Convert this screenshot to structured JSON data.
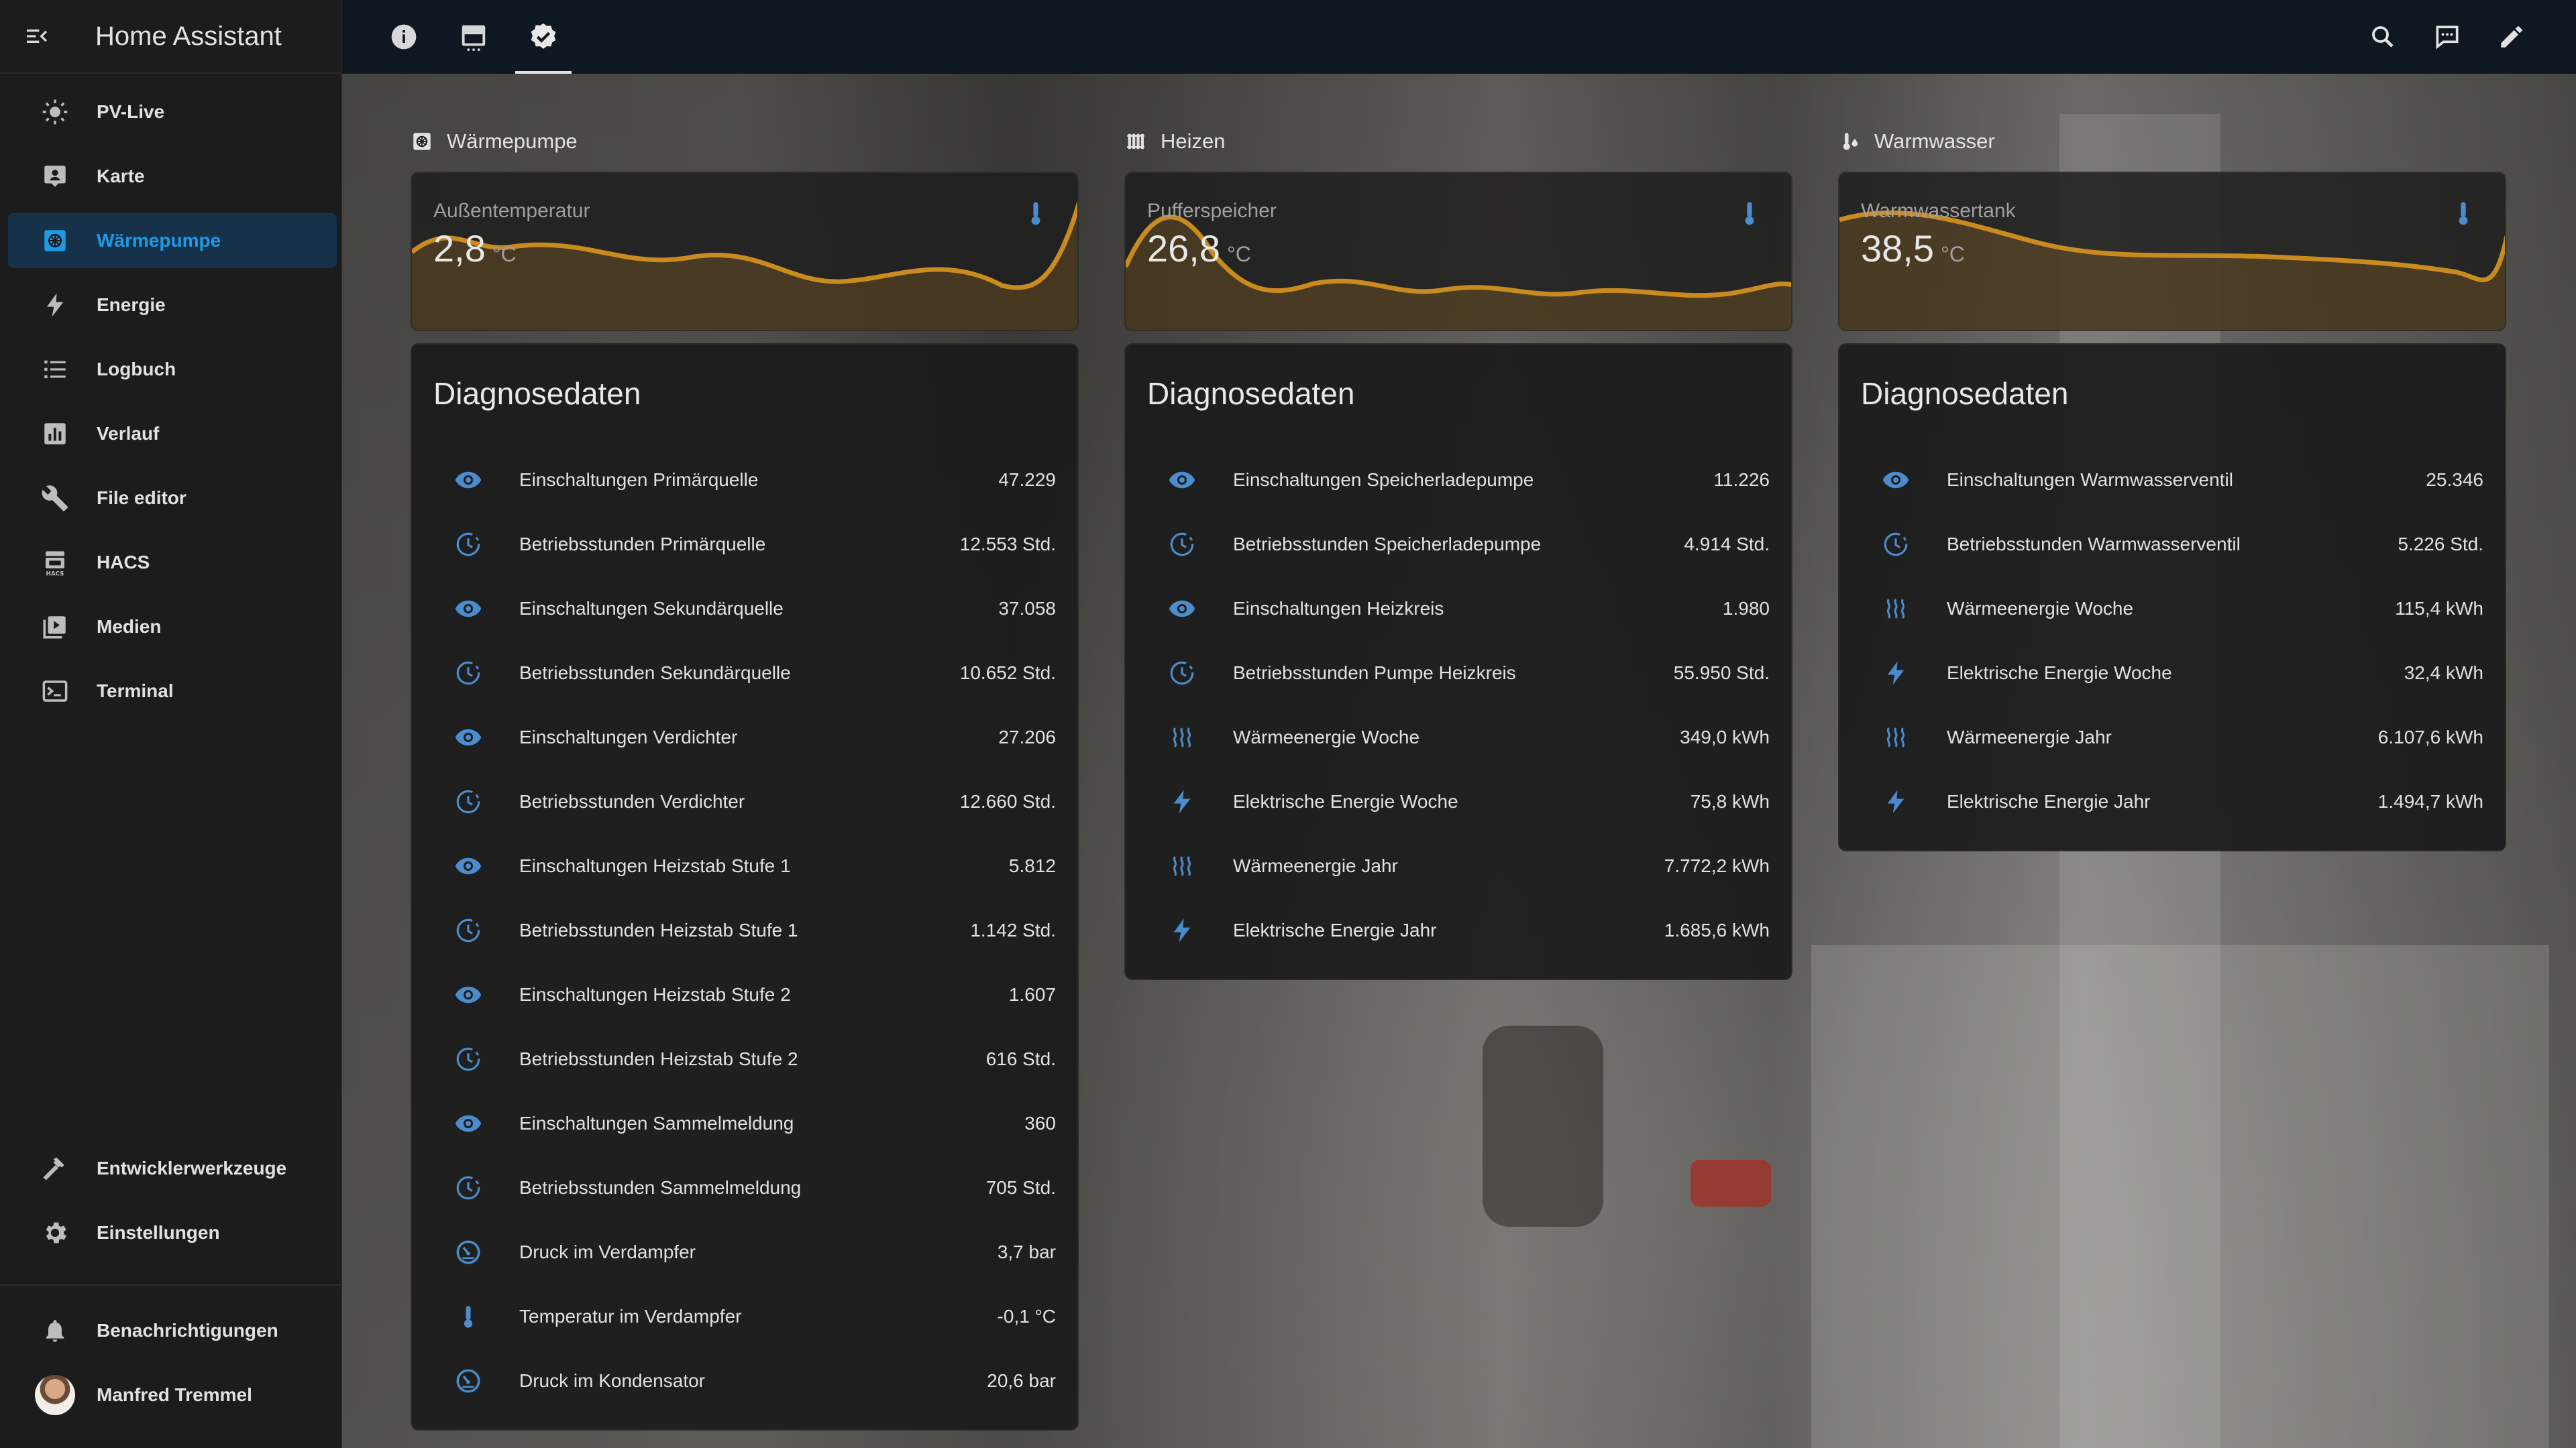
{
  "app": {
    "title": "Home Assistant"
  },
  "sidebar": {
    "items": [
      {
        "label": "PV-Live",
        "icon": "sun-icon"
      },
      {
        "label": "Karte",
        "icon": "map-person-icon"
      },
      {
        "label": "Wärmepumpe",
        "icon": "heat-pump-icon",
        "active": true
      },
      {
        "label": "Energie",
        "icon": "lightning-icon"
      },
      {
        "label": "Logbuch",
        "icon": "list-icon"
      },
      {
        "label": "Verlauf",
        "icon": "chart-icon"
      },
      {
        "label": "File editor",
        "icon": "wrench-icon"
      },
      {
        "label": "HACS",
        "icon": "hacs-icon"
      },
      {
        "label": "Medien",
        "icon": "media-icon"
      },
      {
        "label": "Terminal",
        "icon": "terminal-icon"
      }
    ],
    "bottom": [
      {
        "label": "Entwicklerwerkzeuge",
        "icon": "hammer-icon"
      },
      {
        "label": "Einstellungen",
        "icon": "gear-icon"
      }
    ],
    "notifications": "Benachrichtigungen",
    "user": "Manfred Tremmel"
  },
  "topbar": {
    "tabs": [
      "info-icon",
      "calendar-icon",
      "check-badge-icon"
    ],
    "actions": [
      "search-icon",
      "assist-icon",
      "edit-icon"
    ]
  },
  "colors": {
    "accent": "#1e9be6",
    "graph": "#c98a1f",
    "icon": "#4a8ccd"
  },
  "columns": [
    {
      "title": "Wärmepumpe",
      "icon": "heat-pump-icon",
      "sensor": {
        "name": "Außentemperatur",
        "value": "2,8",
        "unit": "°C"
      },
      "diag_title": "Diagnosedaten",
      "rows": [
        {
          "icon": "eye-icon",
          "label": "Einschaltungen Primärquelle",
          "value": "47.229"
        },
        {
          "icon": "clock-icon",
          "label": "Betriebsstunden Primärquelle",
          "value": "12.553 Std."
        },
        {
          "icon": "eye-icon",
          "label": "Einschaltungen Sekundärquelle",
          "value": "37.058"
        },
        {
          "icon": "clock-icon",
          "label": "Betriebsstunden Sekundärquelle",
          "value": "10.652 Std."
        },
        {
          "icon": "eye-icon",
          "label": "Einschaltungen Verdichter",
          "value": "27.206"
        },
        {
          "icon": "clock-icon",
          "label": "Betriebsstunden Verdichter",
          "value": "12.660 Std."
        },
        {
          "icon": "eye-icon",
          "label": "Einschaltungen Heizstab Stufe 1",
          "value": "5.812"
        },
        {
          "icon": "clock-icon",
          "label": "Betriebsstunden Heizstab Stufe 1",
          "value": "1.142 Std."
        },
        {
          "icon": "eye-icon",
          "label": "Einschaltungen Heizstab Stufe 2",
          "value": "1.607"
        },
        {
          "icon": "clock-icon",
          "label": "Betriebsstunden Heizstab Stufe 2",
          "value": "616 Std."
        },
        {
          "icon": "eye-icon",
          "label": "Einschaltungen Sammelmeldung",
          "value": "360"
        },
        {
          "icon": "clock-icon",
          "label": "Betriebsstunden Sammelmeldung",
          "value": "705 Std."
        },
        {
          "icon": "gauge-icon",
          "label": "Druck im Verdampfer",
          "value": "3,7 bar"
        },
        {
          "icon": "thermometer-icon",
          "label": "Temperatur im Verdampfer",
          "value": "-0,1 °C"
        },
        {
          "icon": "gauge-icon",
          "label": "Druck im Kondensator",
          "value": "20,6 bar"
        }
      ]
    },
    {
      "title": "Heizen",
      "icon": "radiator-icon",
      "sensor": {
        "name": "Pufferspeicher",
        "value": "26,8",
        "unit": "°C"
      },
      "diag_title": "Diagnosedaten",
      "rows": [
        {
          "icon": "eye-icon",
          "label": "Einschaltungen Speicherladepumpe",
          "value": "11.226"
        },
        {
          "icon": "clock-icon",
          "label": "Betriebsstunden Speicherladepumpe",
          "value": "4.914 Std."
        },
        {
          "icon": "eye-icon",
          "label": "Einschaltungen Heizkreis",
          "value": "1.980"
        },
        {
          "icon": "clock-icon",
          "label": "Betriebsstunden Pumpe Heizkreis",
          "value": "55.950 Std."
        },
        {
          "icon": "heat-wave-icon",
          "label": "Wärmeenergie Woche",
          "value": "349,0 kWh"
        },
        {
          "icon": "lightning-icon",
          "label": "Elektrische Energie Woche",
          "value": "75,8 kWh"
        },
        {
          "icon": "heat-wave-icon",
          "label": "Wärmeenergie Jahr",
          "value": "7.772,2 kWh"
        },
        {
          "icon": "lightning-icon",
          "label": "Elektrische Energie Jahr",
          "value": "1.685,6 kWh"
        }
      ]
    },
    {
      "title": "Warmwasser",
      "icon": "water-thermometer-icon",
      "sensor": {
        "name": "Warmwassertank",
        "value": "38,5",
        "unit": "°C"
      },
      "diag_title": "Diagnosedaten",
      "rows": [
        {
          "icon": "eye-icon",
          "label": "Einschaltungen Warmwasserventil",
          "value": "25.346"
        },
        {
          "icon": "clock-icon",
          "label": "Betriebsstunden Warmwasserventil",
          "value": "5.226 Std."
        },
        {
          "icon": "heat-wave-icon",
          "label": "Wärmeenergie Woche",
          "value": "115,4 kWh"
        },
        {
          "icon": "lightning-icon",
          "label": "Elektrische Energie Woche",
          "value": "32,4 kWh"
        },
        {
          "icon": "heat-wave-icon",
          "label": "Wärmeenergie Jahr",
          "value": "6.107,6 kWh"
        },
        {
          "icon": "lightning-icon",
          "label": "Elektrische Energie Jahr",
          "value": "1.494,7 kWh"
        }
      ]
    }
  ]
}
